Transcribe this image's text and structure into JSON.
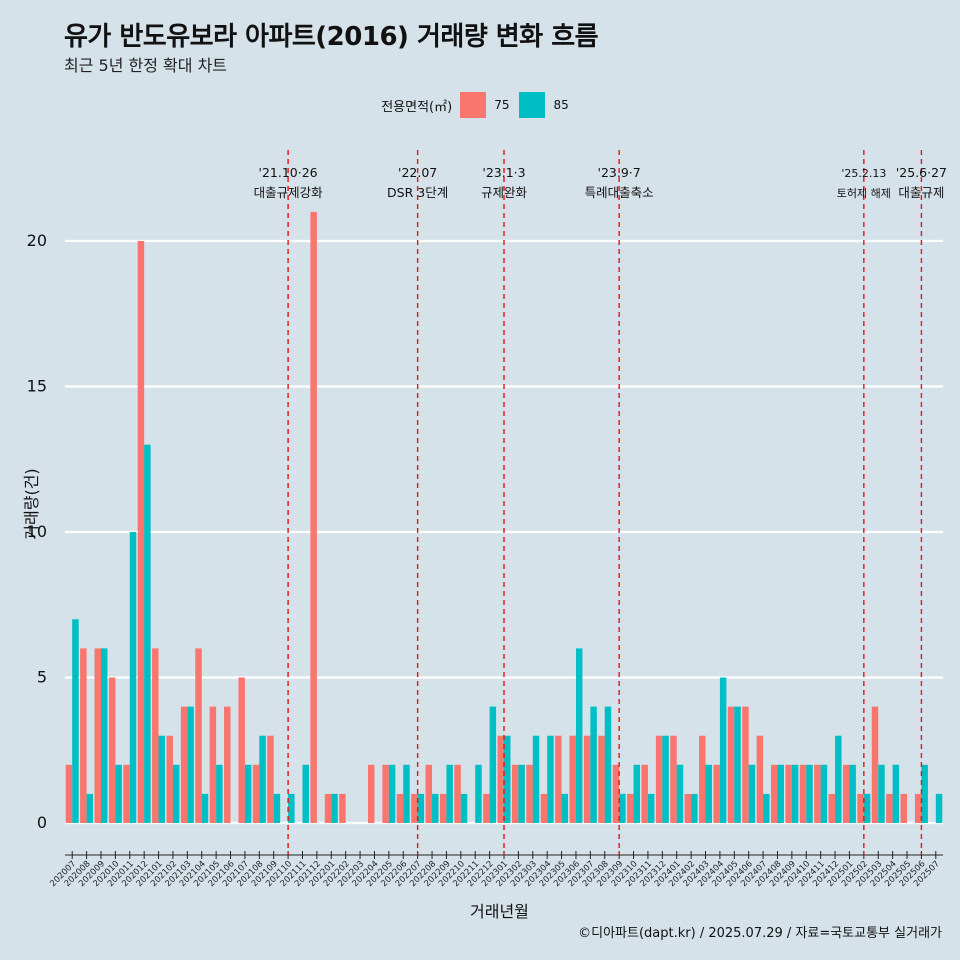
{
  "chart_data": {
    "type": "bar",
    "title": "유가 반도유보라 아파트(2016) 거래량 변화 흐름",
    "subtitle": "최근 5년 한정 확대 차트",
    "xlabel": "거래년월",
    "ylabel": "거래량(건)",
    "caption": "©디아파트(dapt.kr) / 2025.07.29 / 자료=국토교통부 실거래가",
    "legend_title": "전용면적(㎡)",
    "ylim": [
      0,
      22
    ],
    "yticks": [
      0,
      5,
      10,
      15,
      20
    ],
    "categories": [
      "202007",
      "202008",
      "202009",
      "202010",
      "202011",
      "202012",
      "202101",
      "202102",
      "202103",
      "202104",
      "202105",
      "202106",
      "202107",
      "202108",
      "202109",
      "202110",
      "202111",
      "202112",
      "202201",
      "202202",
      "202203",
      "202204",
      "202205",
      "202206",
      "202207",
      "202208",
      "202209",
      "202210",
      "202211",
      "202212",
      "202301",
      "202302",
      "202303",
      "202304",
      "202305",
      "202306",
      "202307",
      "202308",
      "202309",
      "202310",
      "202311",
      "202312",
      "202401",
      "202402",
      "202403",
      "202404",
      "202405",
      "202406",
      "202407",
      "202408",
      "202409",
      "202410",
      "202411",
      "202412",
      "202501",
      "202502",
      "202503",
      "202504",
      "202505",
      "202506",
      "202507"
    ],
    "series": [
      {
        "name": "75",
        "color": "#f8766d",
        "values": [
          2,
          6,
          6,
          5,
          2,
          20,
          6,
          3,
          4,
          6,
          4,
          4,
          5,
          2,
          3,
          null,
          null,
          21,
          1,
          1,
          null,
          2,
          2,
          1,
          1,
          2,
          1,
          2,
          null,
          1,
          3,
          2,
          2,
          1,
          3,
          3,
          3,
          3,
          2,
          1,
          2,
          3,
          3,
          1,
          3,
          2,
          4,
          4,
          3,
          2,
          2,
          2,
          2,
          1,
          2,
          1,
          4,
          1,
          1,
          1,
          null
        ]
      },
      {
        "name": "85",
        "color": "#00bfc4",
        "values": [
          7,
          1,
          6,
          2,
          10,
          13,
          3,
          2,
          4,
          1,
          2,
          null,
          2,
          3,
          1,
          1,
          2,
          null,
          1,
          null,
          null,
          null,
          2,
          2,
          1,
          1,
          2,
          1,
          2,
          4,
          3,
          2,
          3,
          3,
          1,
          6,
          4,
          4,
          1,
          2,
          1,
          3,
          2,
          1,
          2,
          5,
          4,
          2,
          1,
          2,
          2,
          2,
          2,
          3,
          2,
          1,
          2,
          2,
          null,
          2,
          1
        ]
      }
    ],
    "events": [
      {
        "line1": "'21.10·26",
        "line2": "대출규제강화",
        "at": "202110"
      },
      {
        "line1": "'22.07",
        "line2": "DSR 3단계",
        "at": "202207"
      },
      {
        "line1": "'23.1·3",
        "line2": "규제완화",
        "at": "202301"
      },
      {
        "line1": "'23.9·7",
        "line2": "특례대출축소",
        "at": "202309"
      },
      {
        "line1": "'25.2.13",
        "line2": "토허제 해제",
        "at": "202502"
      },
      {
        "line1": "'25.6·27",
        "line2": "대출규제",
        "at": "202506"
      }
    ]
  }
}
